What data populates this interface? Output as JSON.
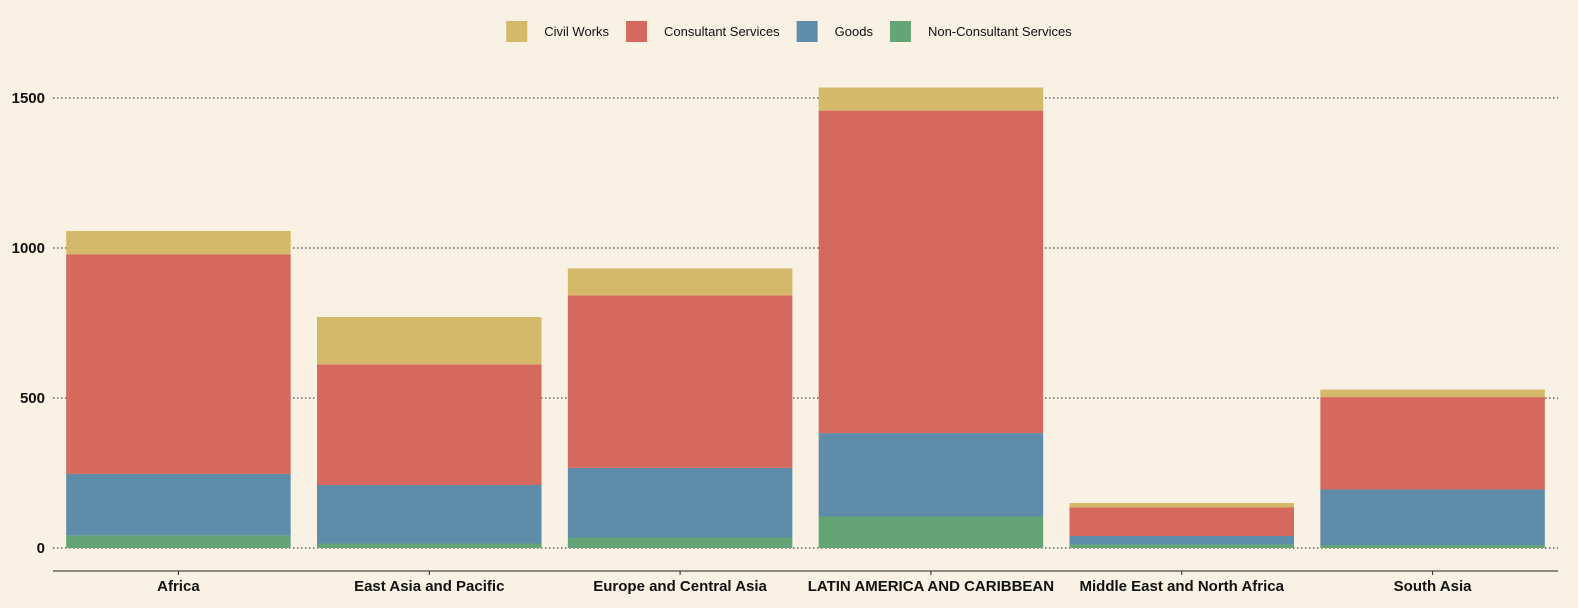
{
  "chart_data": {
    "type": "bar",
    "stacked": true,
    "categories": [
      "Africa",
      "East Asia and Pacific",
      "Europe and Central Asia",
      "LATIN AMERICA AND CARIBBEAN",
      "Middle East and North Africa",
      "South Asia"
    ],
    "series": [
      {
        "name": "Non-Consultant Services",
        "color": "#64a477",
        "values": [
          42,
          15,
          35,
          105,
          12,
          10
        ]
      },
      {
        "name": "Goods",
        "color": "#5e8ca9",
        "values": [
          205,
          195,
          232,
          278,
          28,
          185
        ]
      },
      {
        "name": "Consultant Services",
        "color": "#d5695d",
        "values": [
          732,
          402,
          575,
          1075,
          95,
          308
        ]
      },
      {
        "name": "Civil Works",
        "color": "#d3b969",
        "values": [
          78,
          158,
          90,
          77,
          15,
          25
        ]
      }
    ],
    "legend_order": [
      "Civil Works",
      "Consultant Services",
      "Goods",
      "Non-Consultant Services"
    ],
    "y_ticks": [
      "0",
      "500",
      "1000",
      "1500"
    ],
    "ylim": [
      0,
      1530
    ],
    "title": "",
    "xlabel": "",
    "ylabel": "",
    "grid": "horizontal dotted",
    "legend_position": "top"
  }
}
